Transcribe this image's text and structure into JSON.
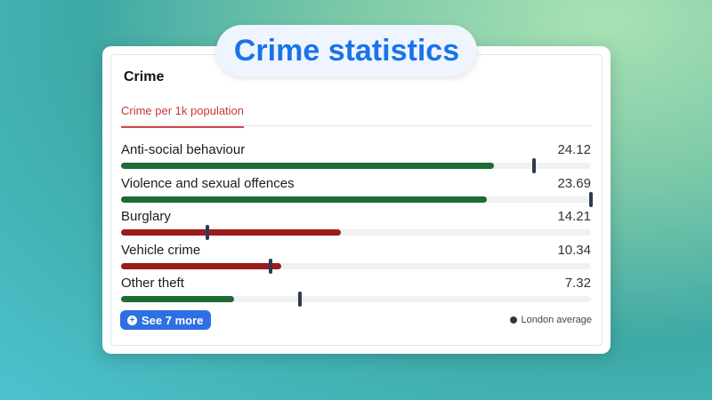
{
  "banner": {
    "title": "Crime statistics"
  },
  "card": {
    "title": "Crime",
    "tab": "Crime per 1k population"
  },
  "scale_max": 30.4,
  "colors": {
    "below_average": "#1e6b35",
    "above_average": "#9b1c1c",
    "marker": "#2e3a4f",
    "accent": "#2f6fe4"
  },
  "rows": [
    {
      "label": "Anti-social behaviour",
      "value": "24.12",
      "amount": 24.12,
      "london_average": 26.7,
      "status": "below_average"
    },
    {
      "label": "Violence and sexual offences",
      "value": "23.69",
      "amount": 23.69,
      "london_average": 30.4,
      "status": "below_average"
    },
    {
      "label": "Burglary",
      "value": "14.21",
      "amount": 14.21,
      "london_average": 5.6,
      "status": "above_average"
    },
    {
      "label": "Vehicle crime",
      "value": "10.34",
      "amount": 10.34,
      "london_average": 9.7,
      "status": "above_average"
    },
    {
      "label": "Other theft",
      "value": "7.32",
      "amount": 7.32,
      "london_average": 11.6,
      "status": "below_average"
    }
  ],
  "footer": {
    "see_more": "See 7 more",
    "see_more_icon": "plus-circle-icon",
    "legend": "London average"
  }
}
